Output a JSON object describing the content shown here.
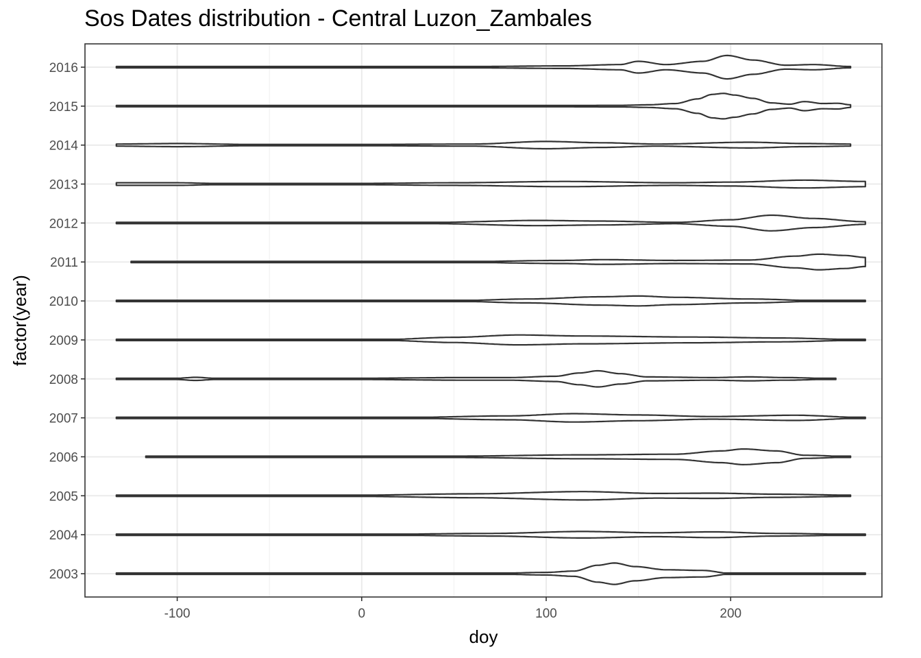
{
  "chart_data": {
    "type": "violin",
    "title": "Sos Dates distribution - Central Luzon_Zambales",
    "xlabel": "doy",
    "ylabel": "factor(year)",
    "xlim": [
      -150,
      282
    ],
    "x_ticks": [
      -100,
      0,
      100,
      200
    ],
    "grid": true,
    "categories": [
      "2003",
      "2004",
      "2005",
      "2006",
      "2007",
      "2008",
      "2009",
      "2010",
      "2011",
      "2012",
      "2013",
      "2014",
      "2015",
      "2016"
    ],
    "series": [
      {
        "category": "2003",
        "range": [
          -133,
          273
        ],
        "density": [
          [
            -133,
            0.02
          ],
          [
            70,
            0.02
          ],
          [
            100,
            0.1
          ],
          [
            115,
            0.2
          ],
          [
            128,
            0.65
          ],
          [
            137,
            0.82
          ],
          [
            148,
            0.55
          ],
          [
            165,
            0.3
          ],
          [
            185,
            0.25
          ],
          [
            200,
            0.02
          ],
          [
            273,
            0.02
          ]
        ]
      },
      {
        "category": "2004",
        "range": [
          -133,
          273
        ],
        "density": [
          [
            -133,
            0.02
          ],
          [
            0,
            0.02
          ],
          [
            70,
            0.1
          ],
          [
            120,
            0.25
          ],
          [
            160,
            0.15
          ],
          [
            190,
            0.22
          ],
          [
            225,
            0.1
          ],
          [
            273,
            0.02
          ]
        ]
      },
      {
        "category": "2005",
        "range": [
          -133,
          265
        ],
        "density": [
          [
            -133,
            0.05
          ],
          [
            0,
            0.05
          ],
          [
            60,
            0.15
          ],
          [
            120,
            0.32
          ],
          [
            160,
            0.18
          ],
          [
            190,
            0.2
          ],
          [
            225,
            0.12
          ],
          [
            265,
            0.05
          ]
        ]
      },
      {
        "category": "2006",
        "range": [
          -117,
          265
        ],
        "density": [
          [
            -117,
            0.02
          ],
          [
            50,
            0.05
          ],
          [
            120,
            0.15
          ],
          [
            170,
            0.2
          ],
          [
            195,
            0.45
          ],
          [
            207,
            0.6
          ],
          [
            225,
            0.45
          ],
          [
            240,
            0.12
          ],
          [
            265,
            0.02
          ]
        ]
      },
      {
        "category": "2007",
        "range": [
          -133,
          273
        ],
        "density": [
          [
            -133,
            0.02
          ],
          [
            20,
            0.02
          ],
          [
            80,
            0.15
          ],
          [
            115,
            0.32
          ],
          [
            150,
            0.22
          ],
          [
            190,
            0.1
          ],
          [
            235,
            0.2
          ],
          [
            273,
            0.02
          ]
        ]
      },
      {
        "category": "2008",
        "range": [
          -133,
          257
        ],
        "density": [
          [
            -133,
            0.05
          ],
          [
            -100,
            0.05
          ],
          [
            -90,
            0.12
          ],
          [
            -80,
            0.05
          ],
          [
            0,
            0.05
          ],
          [
            55,
            0.1
          ],
          [
            80,
            0.1
          ],
          [
            105,
            0.2
          ],
          [
            118,
            0.45
          ],
          [
            128,
            0.62
          ],
          [
            140,
            0.4
          ],
          [
            155,
            0.15
          ],
          [
            190,
            0.1
          ],
          [
            210,
            0.15
          ],
          [
            230,
            0.1
          ],
          [
            257,
            0.02
          ]
        ]
      },
      {
        "category": "2009",
        "range": [
          -133,
          273
        ],
        "density": [
          [
            -133,
            0.02
          ],
          [
            10,
            0.02
          ],
          [
            50,
            0.2
          ],
          [
            85,
            0.38
          ],
          [
            120,
            0.3
          ],
          [
            180,
            0.22
          ],
          [
            225,
            0.15
          ],
          [
            273,
            0.02
          ]
        ]
      },
      {
        "category": "2010",
        "range": [
          -133,
          273
        ],
        "density": [
          [
            -133,
            0.02
          ],
          [
            50,
            0.02
          ],
          [
            90,
            0.15
          ],
          [
            130,
            0.32
          ],
          [
            150,
            0.38
          ],
          [
            170,
            0.28
          ],
          [
            210,
            0.15
          ],
          [
            250,
            0.02
          ],
          [
            273,
            0.02
          ]
        ]
      },
      {
        "category": "2011",
        "range": [
          -125,
          273
        ],
        "density": [
          [
            -125,
            0.02
          ],
          [
            50,
            0.02
          ],
          [
            110,
            0.12
          ],
          [
            130,
            0.18
          ],
          [
            170,
            0.12
          ],
          [
            210,
            0.15
          ],
          [
            235,
            0.45
          ],
          [
            248,
            0.6
          ],
          [
            262,
            0.5
          ],
          [
            273,
            0.35
          ]
        ]
      },
      {
        "category": "2012",
        "range": [
          -133,
          273
        ],
        "density": [
          [
            -133,
            0.05
          ],
          [
            40,
            0.05
          ],
          [
            95,
            0.2
          ],
          [
            130,
            0.15
          ],
          [
            170,
            0.05
          ],
          [
            200,
            0.25
          ],
          [
            222,
            0.6
          ],
          [
            245,
            0.35
          ],
          [
            273,
            0.1
          ]
        ]
      },
      {
        "category": "2013",
        "range": [
          -133,
          273
        ],
        "density": [
          [
            -133,
            0.1
          ],
          [
            -100,
            0.1
          ],
          [
            -80,
            0.05
          ],
          [
            0,
            0.05
          ],
          [
            50,
            0.1
          ],
          [
            110,
            0.2
          ],
          [
            170,
            0.1
          ],
          [
            200,
            0.15
          ],
          [
            240,
            0.3
          ],
          [
            273,
            0.2
          ]
        ]
      },
      {
        "category": "2014",
        "range": [
          -133,
          265
        ],
        "density": [
          [
            -133,
            0.08
          ],
          [
            -100,
            0.12
          ],
          [
            -60,
            0.05
          ],
          [
            0,
            0.05
          ],
          [
            60,
            0.08
          ],
          [
            100,
            0.28
          ],
          [
            130,
            0.18
          ],
          [
            160,
            0.08
          ],
          [
            210,
            0.22
          ],
          [
            240,
            0.12
          ],
          [
            265,
            0.08
          ]
        ]
      },
      {
        "category": "2015",
        "range": [
          -133,
          265
        ],
        "density": [
          [
            -133,
            0.02
          ],
          [
            -100,
            0.05
          ],
          [
            -80,
            0.03
          ],
          [
            0,
            0.03
          ],
          [
            80,
            0.04
          ],
          [
            140,
            0.06
          ],
          [
            155,
            0.1
          ],
          [
            170,
            0.2
          ],
          [
            182,
            0.55
          ],
          [
            190,
            0.9
          ],
          [
            196,
            0.98
          ],
          [
            202,
            0.85
          ],
          [
            212,
            0.6
          ],
          [
            222,
            0.25
          ],
          [
            232,
            0.15
          ],
          [
            240,
            0.35
          ],
          [
            250,
            0.2
          ],
          [
            258,
            0.22
          ],
          [
            265,
            0.1
          ]
        ]
      },
      {
        "category": "2016",
        "range": [
          -133,
          265
        ],
        "density": [
          [
            -133,
            0.05
          ],
          [
            -100,
            0.05
          ],
          [
            0,
            0.02
          ],
          [
            60,
            0.05
          ],
          [
            110,
            0.1
          ],
          [
            140,
            0.2
          ],
          [
            150,
            0.45
          ],
          [
            165,
            0.2
          ],
          [
            185,
            0.45
          ],
          [
            198,
            0.9
          ],
          [
            212,
            0.55
          ],
          [
            230,
            0.15
          ],
          [
            245,
            0.2
          ],
          [
            265,
            0.05
          ]
        ]
      }
    ]
  }
}
